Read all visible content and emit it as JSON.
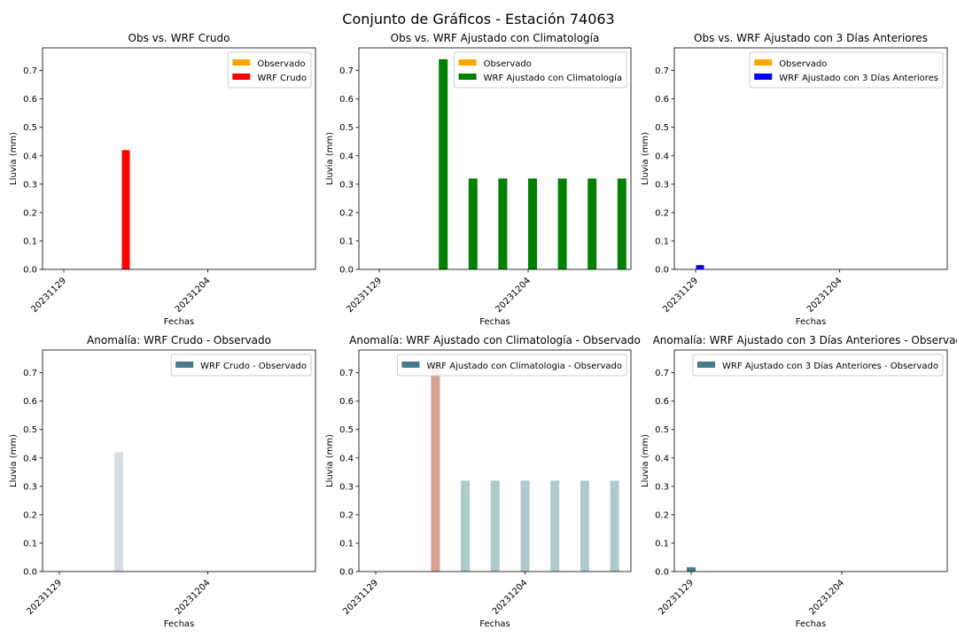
{
  "suptitle": "Conjunto de Gráficos - Estación 74063",
  "chart_data": [
    {
      "type": "bar",
      "title": "Obs vs. WRF Crudo",
      "xlabel": "Fechas",
      "ylabel": "Lluvia (mm)",
      "ylim": [
        0,
        0.78
      ],
      "yticks": [
        "0.0",
        "0.1",
        "0.2",
        "0.3",
        "0.4",
        "0.5",
        "0.6",
        "0.7"
      ],
      "xticks": [
        "20231129",
        "20231204"
      ],
      "legend": "top-right",
      "series": [
        {
          "name": "Observado",
          "color": "#ffa500",
          "values": [
            0,
            0,
            0,
            0,
            0,
            0,
            0,
            0,
            0
          ]
        },
        {
          "name": "WRF Crudo",
          "color": "#ff0000",
          "values": [
            0,
            0,
            0.42,
            0,
            0,
            0,
            0,
            0,
            0
          ]
        }
      ]
    },
    {
      "type": "bar",
      "title": "Obs vs. WRF Ajustado con Climatología",
      "xlabel": "Fechas",
      "ylabel": "Lluvia (mm)",
      "ylim": [
        0,
        0.78
      ],
      "yticks": [
        "0.0",
        "0.1",
        "0.2",
        "0.3",
        "0.4",
        "0.5",
        "0.6",
        "0.7"
      ],
      "xticks": [
        "20231129",
        "20231204"
      ],
      "legend": "top-right",
      "series": [
        {
          "name": "Observado",
          "color": "#ffa500",
          "values": [
            0,
            0,
            0,
            0,
            0,
            0,
            0,
            0,
            0
          ]
        },
        {
          "name": "WRF Ajustado con Climatología",
          "color": "#008000",
          "values": [
            0,
            0,
            0.74,
            0.32,
            0.32,
            0.32,
            0.32,
            0.32,
            0.32
          ]
        }
      ]
    },
    {
      "type": "bar",
      "title": "Obs vs. WRF Ajustado con 3 Días Anteriores",
      "xlabel": "Fechas",
      "ylabel": "Lluvia (mm)",
      "ylim": [
        0,
        0.78
      ],
      "yticks": [
        "0.0",
        "0.1",
        "0.2",
        "0.3",
        "0.4",
        "0.5",
        "0.6",
        "0.7"
      ],
      "xticks": [
        "20231129",
        "20231204"
      ],
      "legend": "top-right",
      "series": [
        {
          "name": "Observado",
          "color": "#ffa500",
          "values": [
            0,
            0,
            0,
            0,
            0,
            0,
            0,
            0,
            0
          ]
        },
        {
          "name": "WRF Ajustado con 3 Días Anteriores",
          "color": "#0000ff",
          "values": [
            0.015,
            0,
            0,
            0,
            0,
            0,
            0,
            0,
            0
          ]
        }
      ]
    },
    {
      "type": "bar",
      "title": "Anomalía: WRF Crudo - Observado",
      "xlabel": "Fechas",
      "ylabel": "Lluvia (mm)",
      "ylim": [
        0,
        0.78
      ],
      "yticks": [
        "0.0",
        "0.1",
        "0.2",
        "0.3",
        "0.4",
        "0.5",
        "0.6",
        "0.7"
      ],
      "xticks": [
        "20231129",
        "20231204"
      ],
      "legend": "top-right",
      "legend_color": "#457b8b",
      "series": [
        {
          "name": "WRF Crudo - Observado",
          "values": [
            0,
            0,
            0.42,
            0,
            0,
            0,
            0,
            0,
            0
          ],
          "colors": [
            "#d4dee2",
            "#d4dee2",
            "#d4dee2",
            "#d4dee2",
            "#d4dee2",
            "#d4dee2",
            "#d4dee2",
            "#d4dee2",
            "#d4dee2"
          ]
        }
      ]
    },
    {
      "type": "bar",
      "title": "Anomalía: WRF Ajustado con Climatología - Observado",
      "xlabel": "Fechas",
      "ylabel": "Lluvia (mm)",
      "ylim": [
        0,
        0.78
      ],
      "yticks": [
        "0.0",
        "0.1",
        "0.2",
        "0.3",
        "0.4",
        "0.5",
        "0.6",
        "0.7"
      ],
      "xticks": [
        "20231129",
        "20231204"
      ],
      "legend": "top-right",
      "legend_color": "#457b8b",
      "series": [
        {
          "name": "WRF Ajustado con Climatologia - Observado",
          "values": [
            0,
            0,
            0.74,
            0.32,
            0.32,
            0.32,
            0.32,
            0.32,
            0.32
          ],
          "colors": [
            "#aecace",
            "#aecace",
            "#d9a394",
            "#aecace",
            "#aecace",
            "#aecace",
            "#aecace",
            "#aecace",
            "#aecace"
          ]
        }
      ]
    },
    {
      "type": "bar",
      "title": "Anomalía: WRF Ajustado con 3 Días Anteriores - Observado",
      "xlabel": "Fechas",
      "ylabel": "Lluvia (mm)",
      "ylim": [
        0,
        0.78
      ],
      "yticks": [
        "0.0",
        "0.1",
        "0.2",
        "0.3",
        "0.4",
        "0.5",
        "0.6",
        "0.7"
      ],
      "xticks": [
        "20231129",
        "20231204"
      ],
      "legend": "top-right",
      "legend_color": "#457b8b",
      "series": [
        {
          "name": "WRF Ajustado con 3 Días Anteriores - Observado",
          "values": [
            0.015,
            0,
            0,
            0,
            0,
            0,
            0,
            0,
            0
          ],
          "colors": [
            "#457b8b",
            "#457b8b",
            "#457b8b",
            "#457b8b",
            "#457b8b",
            "#457b8b",
            "#457b8b",
            "#457b8b",
            "#457b8b"
          ]
        }
      ]
    }
  ]
}
